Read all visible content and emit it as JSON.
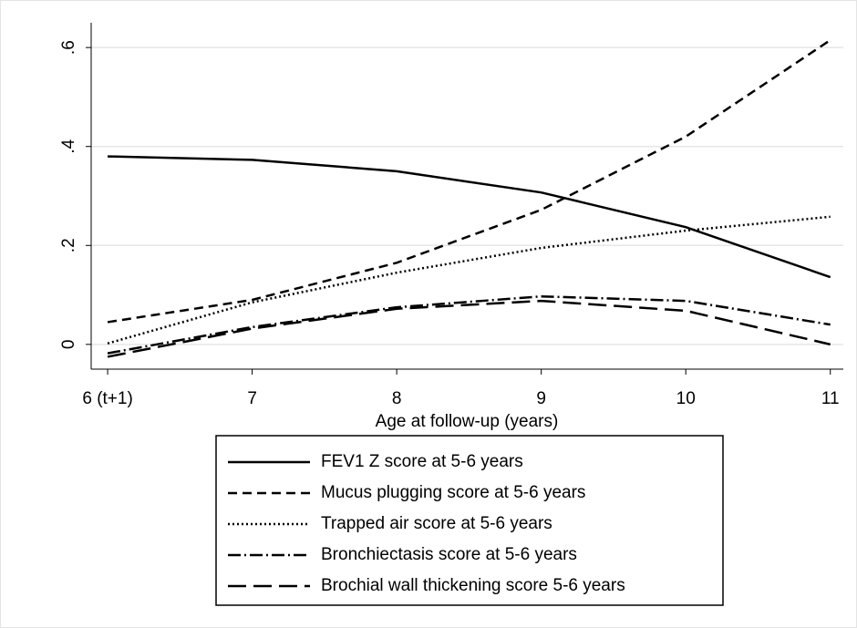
{
  "chart_data": {
    "type": "line",
    "x": [
      6,
      7,
      8,
      9,
      10,
      11
    ],
    "xlim": [
      5.886,
      11.09
    ],
    "xticks": [
      {
        "value": 6,
        "label": "6 (t+1)"
      },
      7,
      8,
      9,
      10,
      11
    ],
    "ylim": [
      -0.05,
      0.65
    ],
    "yticks": [
      0,
      {
        "value": 0.2,
        "label": ".2"
      },
      {
        "value": 0.4,
        "label": ".4"
      },
      {
        "value": 0.6,
        "label": ".6"
      }
    ],
    "grid": true,
    "xlabel": "Age at follow-up (years)",
    "legend": "bottom",
    "series": [
      {
        "name": "FEV1 Z score at 5-6 years",
        "color": "#000000",
        "dash": "solid",
        "values": [
          0.38,
          0.373,
          0.35,
          0.307,
          0.237,
          0.136
        ]
      },
      {
        "name": "Mucus plugging score at 5-6 years",
        "color": "#000000",
        "dash": "dash",
        "values": [
          0.045,
          0.09,
          0.165,
          0.272,
          0.42,
          0.615
        ]
      },
      {
        "name": "Trapped air score at 5-6 years",
        "color": "#000000",
        "dash": "dot",
        "values": [
          0.002,
          0.085,
          0.145,
          0.195,
          0.23,
          0.258
        ]
      },
      {
        "name": "Bronchiectasis score at 5-6 years",
        "color": "#000000",
        "dash": "dashdot",
        "values": [
          -0.018,
          0.035,
          0.075,
          0.097,
          0.088,
          0.04
        ]
      },
      {
        "name": "Brochial wall thickening score 5-6 years",
        "color": "#000000",
        "dash": "longdash",
        "values": [
          -0.025,
          0.032,
          0.072,
          0.088,
          0.068,
          0.0
        ]
      }
    ]
  }
}
